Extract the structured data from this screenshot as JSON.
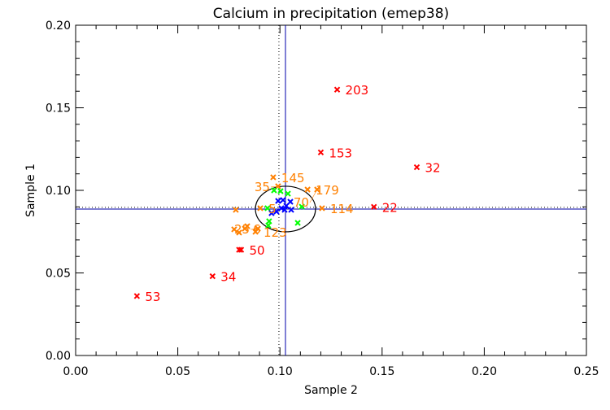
{
  "chart_data": {
    "type": "scatter",
    "title": "Calcium in precipitation (emep38)",
    "xlabel": "Sample 2",
    "ylabel": "Sample 1",
    "xlim": [
      0,
      0.25
    ],
    "ylim": [
      0,
      0.2
    ],
    "xticks": [
      "0.00",
      "0.05",
      "0.10",
      "0.15",
      "0.20",
      "0.25"
    ],
    "yticks": [
      "0.00",
      "0.05",
      "0.10",
      "0.15",
      "0.20"
    ],
    "xtick_values": [
      0,
      0.05,
      0.1,
      0.15,
      0.2,
      0.25
    ],
    "ytick_values": [
      0,
      0.05,
      0.1,
      0.15,
      0.2
    ],
    "minor_step": 0.01,
    "grid": false,
    "reference_lines": {
      "solid_x": 0.1027,
      "solid_y": 0.0887,
      "dotted_x": 0.0995,
      "dotted_y": 0.0897,
      "line_color": "#0000aa",
      "dotted_color": "#000000"
    },
    "ellipse": {
      "cx": 0.1027,
      "cy": 0.0887,
      "rx": 0.0147,
      "ry": 0.0138,
      "color": "#000000"
    },
    "series": [
      {
        "name": "red",
        "color": "#ff0000",
        "points": [
          {
            "x": 0.128,
            "y": 0.161,
            "label": "203"
          },
          {
            "x": 0.12,
            "y": 0.123,
            "label": "153"
          },
          {
            "x": 0.167,
            "y": 0.114,
            "label": "32"
          },
          {
            "x": 0.146,
            "y": 0.09,
            "label": "22"
          },
          {
            "x": 0.081,
            "y": 0.064,
            "label": "50"
          },
          {
            "x": 0.08,
            "y": 0.064,
            "label": ""
          },
          {
            "x": 0.067,
            "y": 0.048,
            "label": "34"
          },
          {
            "x": 0.03,
            "y": 0.036,
            "label": "53"
          }
        ]
      },
      {
        "name": "orange",
        "color": "#ff8000",
        "points": [
          {
            "x": 0.0967,
            "y": 0.1079,
            "label": "145"
          },
          {
            "x": 0.0991,
            "y": 0.1025,
            "label": "35"
          },
          {
            "x": 0.1135,
            "y": 0.1005,
            "label": "179"
          },
          {
            "x": 0.1182,
            "y": 0.1005,
            "label": "70"
          },
          {
            "x": 0.1206,
            "y": 0.0892,
            "label": "114"
          },
          {
            "x": 0.0784,
            "y": 0.0882,
            "label": ""
          },
          {
            "x": 0.0776,
            "y": 0.0764,
            "label": ""
          },
          {
            "x": 0.08,
            "y": 0.0744,
            "label": ""
          },
          {
            "x": 0.0828,
            "y": 0.0768,
            "label": "6"
          },
          {
            "x": 0.084,
            "y": 0.0783,
            "label": ""
          },
          {
            "x": 0.088,
            "y": 0.0749,
            "label": "123"
          },
          {
            "x": 0.0892,
            "y": 0.0768,
            "label": "25"
          },
          {
            "x": 0.0904,
            "y": 0.0892,
            "label": "5"
          }
        ]
      },
      {
        "name": "green",
        "color": "#00ff00",
        "points": [
          {
            "x": 0.1003,
            "y": 0.0995
          },
          {
            "x": 0.1039,
            "y": 0.098
          },
          {
            "x": 0.1107,
            "y": 0.0901
          },
          {
            "x": 0.0939,
            "y": 0.0892
          },
          {
            "x": 0.0947,
            "y": 0.0813
          },
          {
            "x": 0.0943,
            "y": 0.0788
          },
          {
            "x": 0.1087,
            "y": 0.0803
          },
          {
            "x": 0.0971,
            "y": 0.1
          }
        ]
      },
      {
        "name": "blue",
        "color": "#0000ff",
        "points": [
          {
            "x": 0.0991,
            "y": 0.0936
          },
          {
            "x": 0.1015,
            "y": 0.0941
          },
          {
            "x": 0.1051,
            "y": 0.0931
          },
          {
            "x": 0.1007,
            "y": 0.0892
          },
          {
            "x": 0.0983,
            "y": 0.0872
          },
          {
            "x": 0.0959,
            "y": 0.0862
          },
          {
            "x": 0.1023,
            "y": 0.0882
          },
          {
            "x": 0.1055,
            "y": 0.0882
          },
          {
            "x": 0.1031,
            "y": 0.0906
          }
        ]
      }
    ]
  }
}
